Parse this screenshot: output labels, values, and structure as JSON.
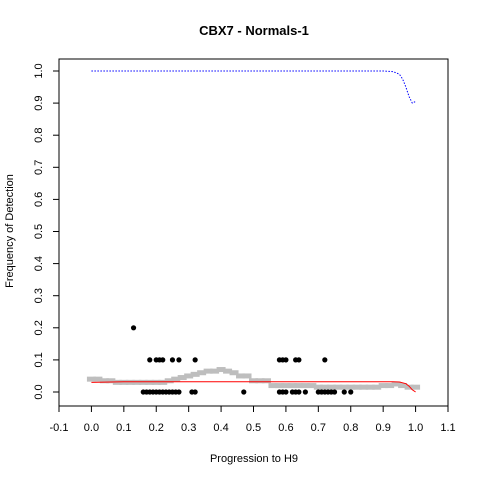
{
  "chart_data": {
    "type": "scatter",
    "title": "CBX7 - Normals-1",
    "xlabel": "Progression to H9",
    "ylabel": "Frequency of Detection",
    "xlim": [
      -0.1,
      1.1
    ],
    "ylim": [
      0.0,
      1.0
    ],
    "x_ticks": [
      -0.1,
      0.0,
      0.1,
      0.2,
      0.3,
      0.4,
      0.5,
      0.6,
      0.7,
      0.8,
      0.9,
      1.0,
      1.1
    ],
    "x_tick_labels": [
      "-0.1",
      "0.0",
      "0.1",
      "0.2",
      "0.3",
      "0.4",
      "0.5",
      "0.6",
      "0.7",
      "0.8",
      "0.9",
      "1.0",
      "1.1"
    ],
    "y_ticks": [
      0.0,
      0.1,
      0.2,
      0.3,
      0.4,
      0.5,
      0.6,
      0.7,
      0.8,
      0.9,
      1.0
    ],
    "y_tick_labels": [
      "0.0",
      "0.1",
      "0.2",
      "0.3",
      "0.4",
      "0.5",
      "0.6",
      "0.7",
      "0.8",
      "0.9",
      "1.0"
    ],
    "grid": false,
    "legend": "none",
    "colors": {
      "points": "#000000",
      "running_mean": "#bebebe",
      "fit_line": "#ff0000",
      "upper_curve": "#0000ff"
    },
    "series": [
      {
        "kind": "points",
        "x": [
          0.13,
          0.16,
          0.17,
          0.18,
          0.19,
          0.2,
          0.21,
          0.22,
          0.23,
          0.24,
          0.25,
          0.26,
          0.27,
          0.31,
          0.32,
          0.47,
          0.58,
          0.59,
          0.6,
          0.62,
          0.63,
          0.64,
          0.66,
          0.7,
          0.71,
          0.72,
          0.73,
          0.74,
          0.75,
          0.78,
          0.8,
          0.18,
          0.2,
          0.21,
          0.22,
          0.25,
          0.27,
          0.32,
          0.58,
          0.59,
          0.6,
          0.63,
          0.64,
          0.72
        ],
        "y": [
          0.2,
          0.0,
          0.0,
          0.0,
          0.0,
          0.0,
          0.0,
          0.0,
          0.0,
          0.0,
          0.0,
          0.0,
          0.0,
          0.0,
          0.0,
          0.0,
          0.0,
          0.0,
          0.0,
          0.0,
          0.0,
          0.0,
          0.0,
          0.0,
          0.0,
          0.0,
          0.0,
          0.0,
          0.0,
          0.0,
          0.0,
          0.1,
          0.1,
          0.1,
          0.1,
          0.1,
          0.1,
          0.1,
          0.1,
          0.1,
          0.1,
          0.1,
          0.1,
          0.1
        ]
      },
      {
        "kind": "running-mean",
        "x": [
          0.0,
          0.02,
          0.04,
          0.06,
          0.08,
          0.1,
          0.12,
          0.14,
          0.16,
          0.18,
          0.2,
          0.22,
          0.24,
          0.26,
          0.28,
          0.3,
          0.32,
          0.34,
          0.36,
          0.38,
          0.4,
          0.42,
          0.44,
          0.46,
          0.48,
          0.5,
          0.52,
          0.54,
          0.56,
          0.58,
          0.6,
          0.62,
          0.64,
          0.66,
          0.68,
          0.7,
          0.72,
          0.74,
          0.76,
          0.78,
          0.8,
          0.82,
          0.84,
          0.86,
          0.88,
          0.9,
          0.92,
          0.94,
          0.96,
          0.98,
          1.0
        ],
        "y": [
          0.04,
          0.04,
          0.035,
          0.035,
          0.03,
          0.03,
          0.03,
          0.03,
          0.03,
          0.03,
          0.03,
          0.03,
          0.035,
          0.04,
          0.045,
          0.05,
          0.055,
          0.06,
          0.065,
          0.065,
          0.07,
          0.065,
          0.06,
          0.05,
          0.05,
          0.035,
          0.035,
          0.035,
          0.02,
          0.02,
          0.02,
          0.02,
          0.02,
          0.02,
          0.02,
          0.015,
          0.015,
          0.015,
          0.015,
          0.015,
          0.015,
          0.015,
          0.015,
          0.015,
          0.015,
          0.02,
          0.02,
          0.025,
          0.02,
          0.015,
          0.015
        ]
      },
      {
        "kind": "fit-line",
        "x": [
          0.0,
          0.1,
          0.2,
          0.3,
          0.4,
          0.5,
          0.6,
          0.7,
          0.8,
          0.9,
          0.93,
          0.95,
          0.97,
          0.98,
          0.99,
          1.0
        ],
        "y": [
          0.03,
          0.032,
          0.032,
          0.032,
          0.032,
          0.032,
          0.032,
          0.032,
          0.032,
          0.032,
          0.032,
          0.031,
          0.026,
          0.018,
          0.007,
          0.0
        ]
      },
      {
        "kind": "upper-curve",
        "x": [
          0.0,
          0.1,
          0.2,
          0.3,
          0.4,
          0.5,
          0.6,
          0.7,
          0.8,
          0.9,
          0.93,
          0.95,
          0.96,
          0.97,
          0.98,
          0.99,
          1.0
        ],
        "y": [
          1.0,
          1.0,
          1.0,
          1.0,
          1.0,
          1.0,
          1.0,
          1.0,
          1.0,
          1.0,
          0.998,
          0.99,
          0.975,
          0.95,
          0.92,
          0.9,
          0.905
        ]
      }
    ]
  }
}
